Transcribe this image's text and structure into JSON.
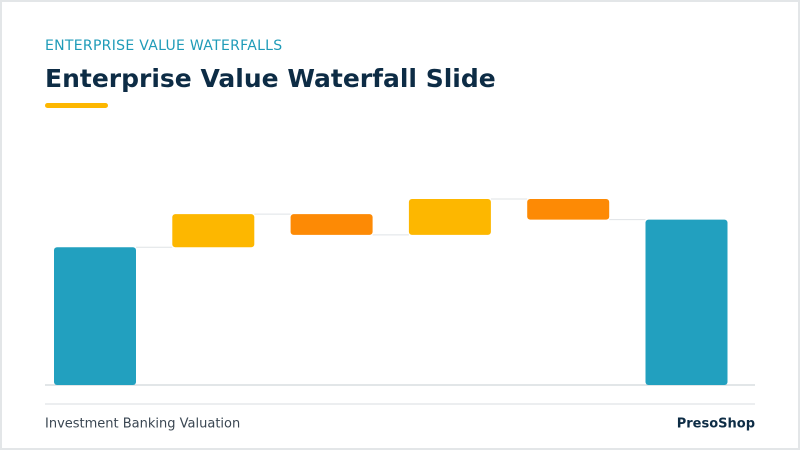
{
  "header": {
    "eyebrow": "ENTERPRISE VALUE WATERFALLS",
    "title": "Enterprise Value Waterfall Slide"
  },
  "chart_data": {
    "type": "waterfall",
    "values": [
      100,
      24,
      -15,
      26,
      -15,
      120
    ],
    "is_total": [
      true,
      false,
      false,
      false,
      false,
      true
    ],
    "colors": {
      "total": "#22a0bf",
      "increase": "#fdb700",
      "decrease": "#fd8a05"
    }
  },
  "footer": {
    "left": "Investment Banking Valuation",
    "right": "PresoShop"
  }
}
